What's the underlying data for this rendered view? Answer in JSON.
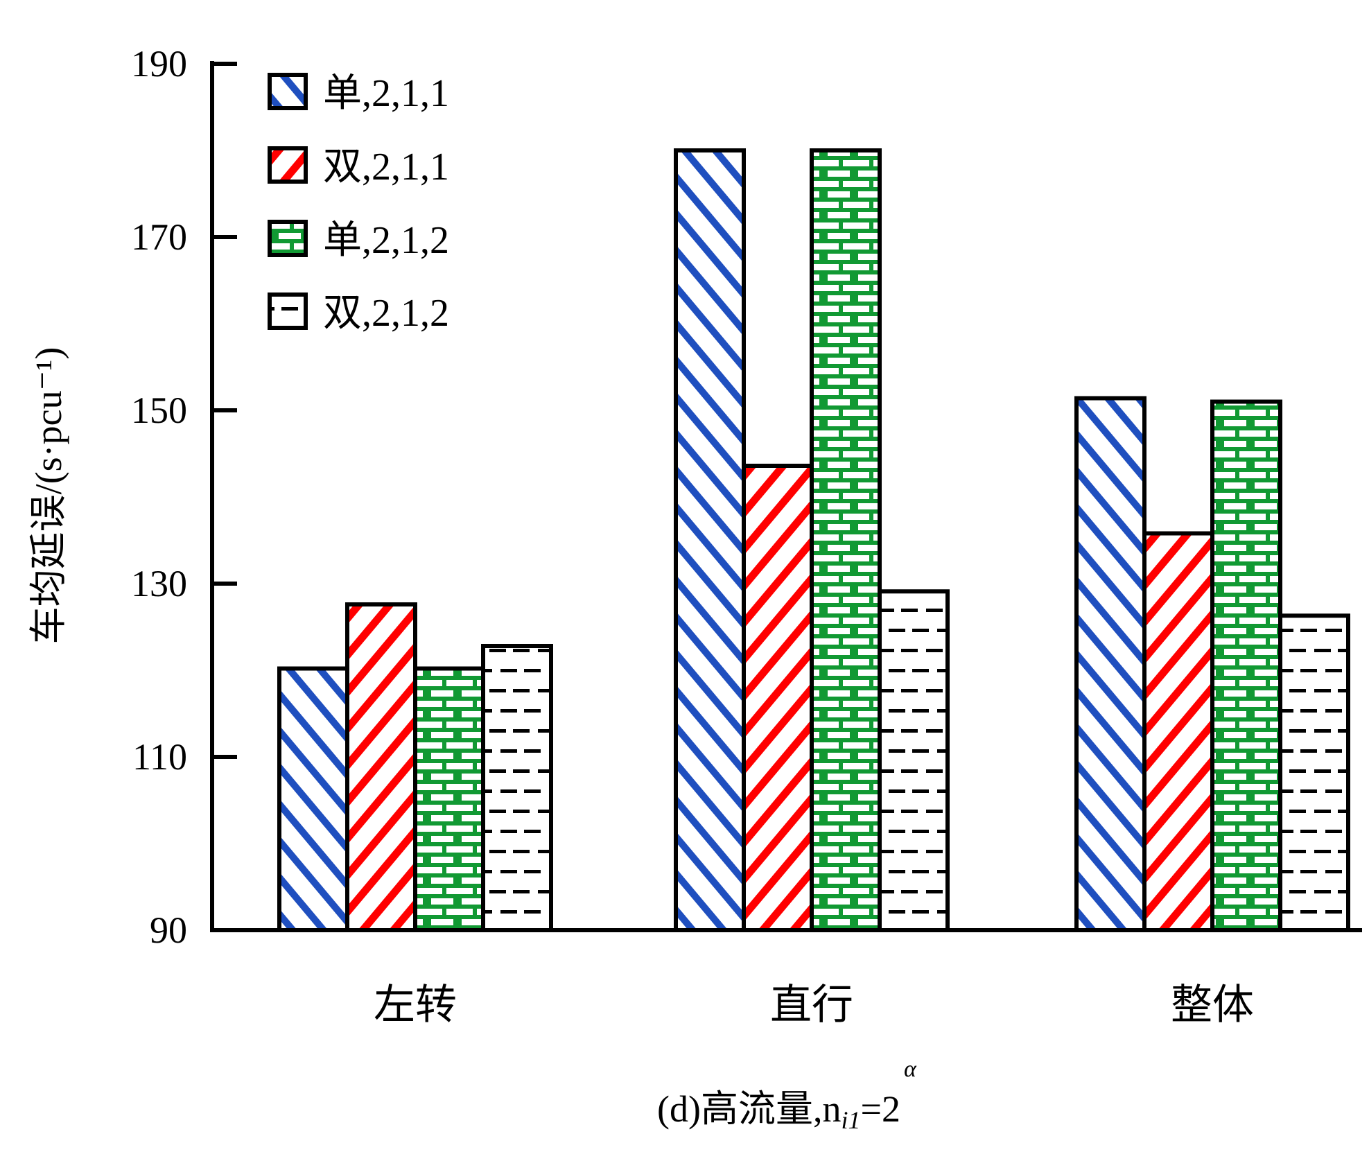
{
  "chart_data": {
    "type": "bar",
    "ylabel": "车均延误/(s·pcu⁻¹)",
    "caption": "(d)高流量,n",
    "caption_sup": "α",
    "caption_sub": "i1",
    "caption_tail": "=2",
    "categories": [
      "左转",
      "直行",
      "整体"
    ],
    "ylim": [
      90,
      190
    ],
    "yticks": [
      90,
      110,
      130,
      150,
      170,
      190
    ],
    "legend_position": "top-left",
    "series": [
      {
        "name": "单,2,1,1",
        "values": [
          120.2,
          180.0,
          151.4
        ],
        "color": "#1f4fbf",
        "pattern": "blue-diagonal"
      },
      {
        "name": "双,2,1,1",
        "values": [
          127.6,
          143.6,
          135.8
        ],
        "color": "#ff0000",
        "pattern": "red-diagonal"
      },
      {
        "name": "单,2,1,2",
        "values": [
          120.2,
          180.0,
          151.0
        ],
        "color": "#119933",
        "pattern": "green-brick"
      },
      {
        "name": "双,2,1,2",
        "values": [
          122.8,
          129.1,
          126.3
        ],
        "color": "#000000",
        "pattern": "black-dash"
      }
    ]
  }
}
